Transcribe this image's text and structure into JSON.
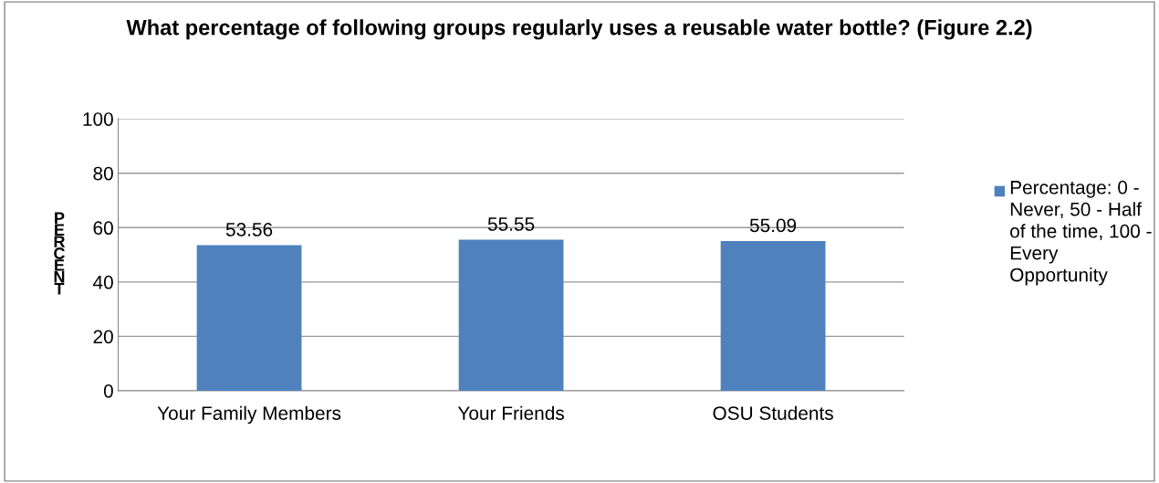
{
  "chart_data": {
    "type": "bar",
    "title": "What percentage of following groups regularly uses a reusable water bottle? (Figure 2.2)",
    "ylabel": "PERCENT",
    "categories": [
      "Your Family Members",
      "Your Friends",
      "OSU Students"
    ],
    "series": [
      {
        "name": "Percentage: 0 - Never, 50 - Half of the time, 100 - Every Opportunity",
        "color": "#4f81bd",
        "values": [
          53.56,
          55.55,
          55.09
        ]
      }
    ],
    "ylim": [
      0,
      100
    ],
    "yticks": [
      0,
      20,
      40,
      60,
      80,
      100
    ],
    "grid": "y",
    "legend": "right",
    "data_labels": true
  }
}
